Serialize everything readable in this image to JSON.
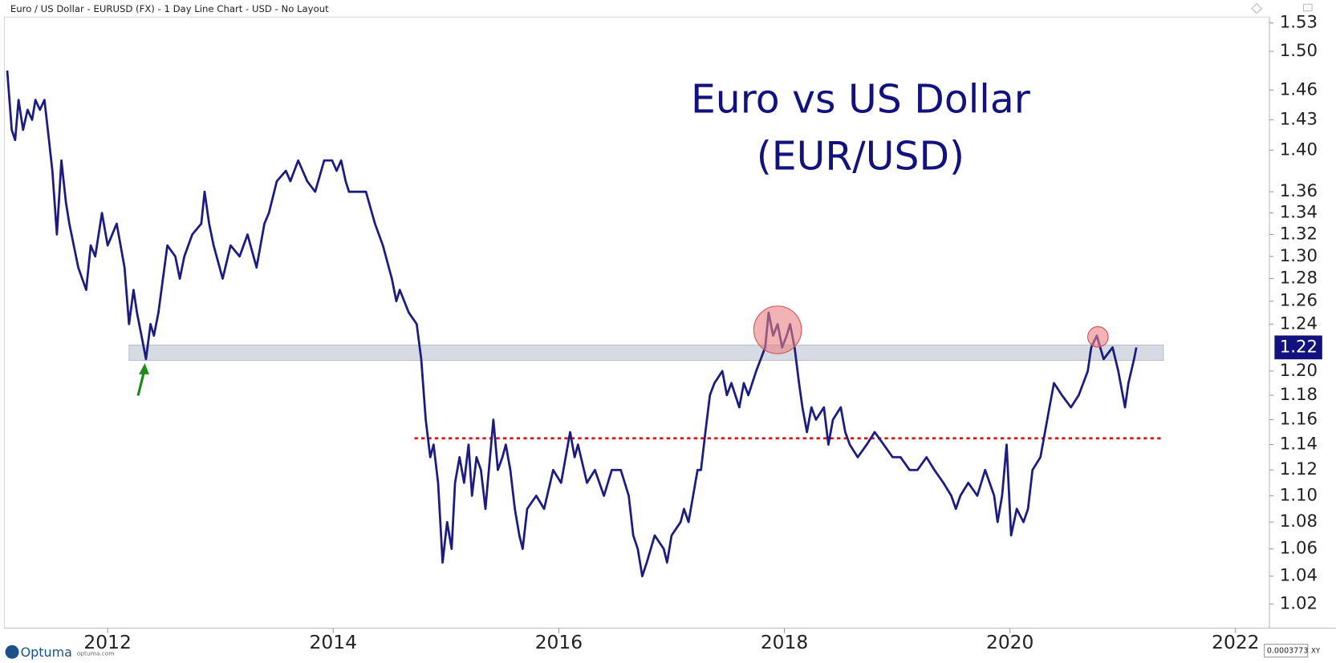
{
  "header": "Euro / US Dollar - EURUSD (FX) - 1 Day Line Chart - USD - No Layout",
  "footer": {
    "logo": "Optuma",
    "site": "optuma.com",
    "scale_box": "0.0003773",
    "scale_mode": "XY"
  },
  "chart_data": {
    "type": "line",
    "title": "Euro vs US Dollar",
    "subtitle": "(EUR/USD)",
    "log_scale": true,
    "xlim": [
      2011.1,
      2022.3
    ],
    "xticks": [
      2012,
      2014,
      2016,
      2018,
      2020,
      2022
    ],
    "ylim": [
      1.0,
      1.54
    ],
    "yticks": [
      1.02,
      1.04,
      1.06,
      1.08,
      {
        "value": 1.1,
        "label": "1.10"
      },
      1.12,
      1.14,
      1.16,
      1.18,
      {
        "value": 1.2,
        "label": "1.20"
      },
      1.24,
      1.26,
      1.28,
      {
        "value": 1.3,
        "label": "1.30"
      },
      1.32,
      1.34,
      1.36,
      {
        "value": 1.4,
        "label": "1.40"
      },
      1.43,
      1.46,
      {
        "value": 1.5,
        "label": "1.50"
      },
      1.53
    ],
    "last_value": 1.22,
    "x": [
      2011.11,
      2011.15,
      2011.18,
      2011.21,
      2011.25,
      2011.29,
      2011.33,
      2011.36,
      2011.4,
      2011.44,
      2011.48,
      2011.51,
      2011.55,
      2011.59,
      2011.63,
      2011.66,
      2011.74,
      2011.81,
      2011.85,
      2011.89,
      2011.95,
      2012.0,
      2012.08,
      2012.15,
      2012.19,
      2012.23,
      2012.26,
      2012.3,
      2012.34,
      2012.38,
      2012.41,
      2012.45,
      2012.49,
      2012.53,
      2012.6,
      2012.64,
      2012.68,
      2012.75,
      2012.83,
      2012.86,
      2012.9,
      2012.94,
      2013.02,
      2013.09,
      2013.17,
      2013.24,
      2013.32,
      2013.39,
      2013.43,
      2013.5,
      2013.58,
      2013.62,
      2013.69,
      2013.77,
      2013.84,
      2013.92,
      2013.99,
      2014.03,
      2014.07,
      2014.11,
      2014.14,
      2014.22,
      2014.29,
      2014.37,
      2014.44,
      2014.52,
      2014.56,
      2014.59,
      2014.67,
      2014.74,
      2014.78,
      2014.82,
      2014.86,
      2014.89,
      2014.93,
      2014.97,
      2015.01,
      2015.05,
      2015.08,
      2015.12,
      2015.16,
      2015.2,
      2015.23,
      2015.27,
      2015.31,
      2015.35,
      2015.38,
      2015.42,
      2015.46,
      2015.5,
      2015.53,
      2015.57,
      2015.61,
      2015.65,
      2015.68,
      2015.72,
      2015.8,
      2015.87,
      2015.95,
      2016.02,
      2016.1,
      2016.14,
      2016.17,
      2016.25,
      2016.32,
      2016.4,
      2016.47,
      2016.55,
      2016.62,
      2016.66,
      2016.7,
      2016.74,
      2016.78,
      2016.85,
      2016.93,
      2016.96,
      2017.0,
      2017.08,
      2017.11,
      2017.15,
      2017.23,
      2017.26,
      2017.3,
      2017.34,
      2017.38,
      2017.45,
      2017.49,
      2017.53,
      2017.6,
      2017.64,
      2017.68,
      2017.75,
      2017.83,
      2017.86,
      2017.9,
      2017.94,
      2017.98,
      2018.02,
      2018.05,
      2018.09,
      2018.13,
      2018.16,
      2018.2,
      2018.24,
      2018.28,
      2018.35,
      2018.39,
      2018.43,
      2018.5,
      2018.54,
      2018.58,
      2018.65,
      2018.73,
      2018.8,
      2018.88,
      2018.96,
      2019.03,
      2019.11,
      2019.18,
      2019.26,
      2019.33,
      2019.41,
      2019.48,
      2019.52,
      2019.56,
      2019.63,
      2019.71,
      2019.78,
      2019.86,
      2019.89,
      2019.93,
      2019.97,
      2020.01,
      2020.06,
      2020.12,
      2020.16,
      2020.2,
      2020.27,
      2020.35,
      2020.39,
      2020.46,
      2020.54,
      2020.61,
      2020.69,
      2020.72,
      2020.77,
      2020.83,
      2020.91,
      2020.96,
      2021.02,
      2021.05,
      2021.1,
      2021.12
    ],
    "series": [
      {
        "name": "EURUSD",
        "color": "#1c1c80",
        "values": [
          1.48,
          1.42,
          1.41,
          1.45,
          1.42,
          1.44,
          1.43,
          1.45,
          1.44,
          1.45,
          1.41,
          1.38,
          1.32,
          1.39,
          1.35,
          1.33,
          1.29,
          1.27,
          1.31,
          1.3,
          1.34,
          1.31,
          1.33,
          1.29,
          1.24,
          1.27,
          1.25,
          1.23,
          1.21,
          1.24,
          1.23,
          1.25,
          1.28,
          1.31,
          1.3,
          1.28,
          1.3,
          1.32,
          1.33,
          1.36,
          1.33,
          1.31,
          1.28,
          1.31,
          1.3,
          1.32,
          1.29,
          1.33,
          1.34,
          1.37,
          1.38,
          1.37,
          1.39,
          1.37,
          1.36,
          1.39,
          1.39,
          1.38,
          1.39,
          1.37,
          1.36,
          1.36,
          1.36,
          1.33,
          1.31,
          1.28,
          1.26,
          1.27,
          1.25,
          1.24,
          1.21,
          1.16,
          1.13,
          1.14,
          1.11,
          1.05,
          1.08,
          1.06,
          1.11,
          1.13,
          1.11,
          1.14,
          1.1,
          1.13,
          1.12,
          1.09,
          1.12,
          1.16,
          1.12,
          1.13,
          1.14,
          1.12,
          1.09,
          1.07,
          1.06,
          1.09,
          1.1,
          1.09,
          1.12,
          1.11,
          1.15,
          1.13,
          1.14,
          1.11,
          1.12,
          1.1,
          1.12,
          1.12,
          1.1,
          1.07,
          1.06,
          1.04,
          1.05,
          1.07,
          1.06,
          1.05,
          1.07,
          1.08,
          1.09,
          1.08,
          1.12,
          1.12,
          1.15,
          1.18,
          1.19,
          1.2,
          1.18,
          1.19,
          1.17,
          1.19,
          1.18,
          1.2,
          1.22,
          1.25,
          1.23,
          1.24,
          1.22,
          1.23,
          1.24,
          1.22,
          1.19,
          1.17,
          1.15,
          1.17,
          1.16,
          1.17,
          1.14,
          1.16,
          1.17,
          1.15,
          1.14,
          1.13,
          1.14,
          1.15,
          1.14,
          1.13,
          1.13,
          1.12,
          1.12,
          1.13,
          1.12,
          1.11,
          1.1,
          1.09,
          1.1,
          1.11,
          1.1,
          1.12,
          1.1,
          1.08,
          1.1,
          1.14,
          1.07,
          1.09,
          1.08,
          1.09,
          1.12,
          1.13,
          1.17,
          1.19,
          1.18,
          1.17,
          1.18,
          1.2,
          1.22,
          1.23,
          1.21,
          1.22,
          1.2,
          1.17,
          1.19,
          1.21,
          1.22
        ]
      }
    ],
    "support_band": {
      "x": [
        2012.19,
        2021.36
      ],
      "y": [
        1.209,
        1.222
      ],
      "color": "#cfd4de"
    },
    "level_line": {
      "x": [
        2014.72,
        2021.36
      ],
      "y": 1.145,
      "color": "#e01010"
    },
    "highlights": [
      {
        "x": 2017.94,
        "y": 1.235
      },
      {
        "x": 2020.78,
        "y": 1.229
      }
    ],
    "highlight_color": "#e88080",
    "arrow": {
      "x": 2012.33,
      "y": 1.208,
      "color": "#1a8a1a"
    }
  }
}
